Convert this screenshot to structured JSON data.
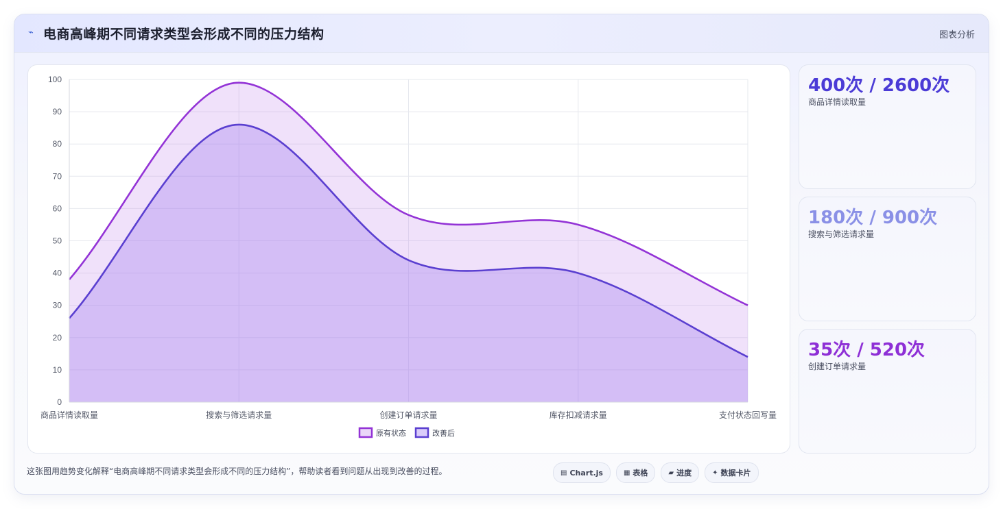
{
  "header": {
    "icon": "trend-icon",
    "title": "电商高峰期不同请求类型会形成不同的压力结构",
    "link_label": "图表分析"
  },
  "chart_data": {
    "type": "area",
    "categories": [
      "商品详情读取量",
      "搜索与筛选请求量",
      "创建订单请求量",
      "库存扣减请求量",
      "支付状态回写量"
    ],
    "series": [
      {
        "name": "原有状态",
        "values": [
          38,
          99,
          58,
          55,
          30
        ],
        "color": "#9333d6"
      },
      {
        "name": "改善后",
        "values": [
          26,
          86,
          44,
          40,
          14
        ],
        "color": "#5a3fd0"
      }
    ],
    "ylim": [
      0,
      100
    ],
    "yticks": [
      0,
      10,
      20,
      30,
      40,
      50,
      60,
      70,
      80,
      90,
      100
    ],
    "grid": true,
    "legend_position": "bottom"
  },
  "stats": [
    {
      "value": "400次 / 2600次",
      "label": "商品详情读取量",
      "color": "#4b3bd6"
    },
    {
      "value": "180次 / 900次",
      "label": "搜索与筛选请求量",
      "color": "#8a90e6"
    },
    {
      "value": "35次 / 520次",
      "label": "创建订单请求量",
      "color": "#8e2fd6"
    }
  ],
  "footer": {
    "description": "这张图用趋势变化解释“电商高峰期不同请求类型会形成不同的压力结构”，帮助读者看到问题从出现到改善的过程。",
    "chips": [
      {
        "icon": "chart-icon",
        "glyph": "▤",
        "label": "Chart.js"
      },
      {
        "icon": "table-icon",
        "glyph": "▦",
        "label": "表格"
      },
      {
        "icon": "progress-icon",
        "glyph": "▰",
        "label": "进度"
      },
      {
        "icon": "sparkle-icon",
        "glyph": "✦",
        "label": "数据卡片"
      }
    ]
  }
}
